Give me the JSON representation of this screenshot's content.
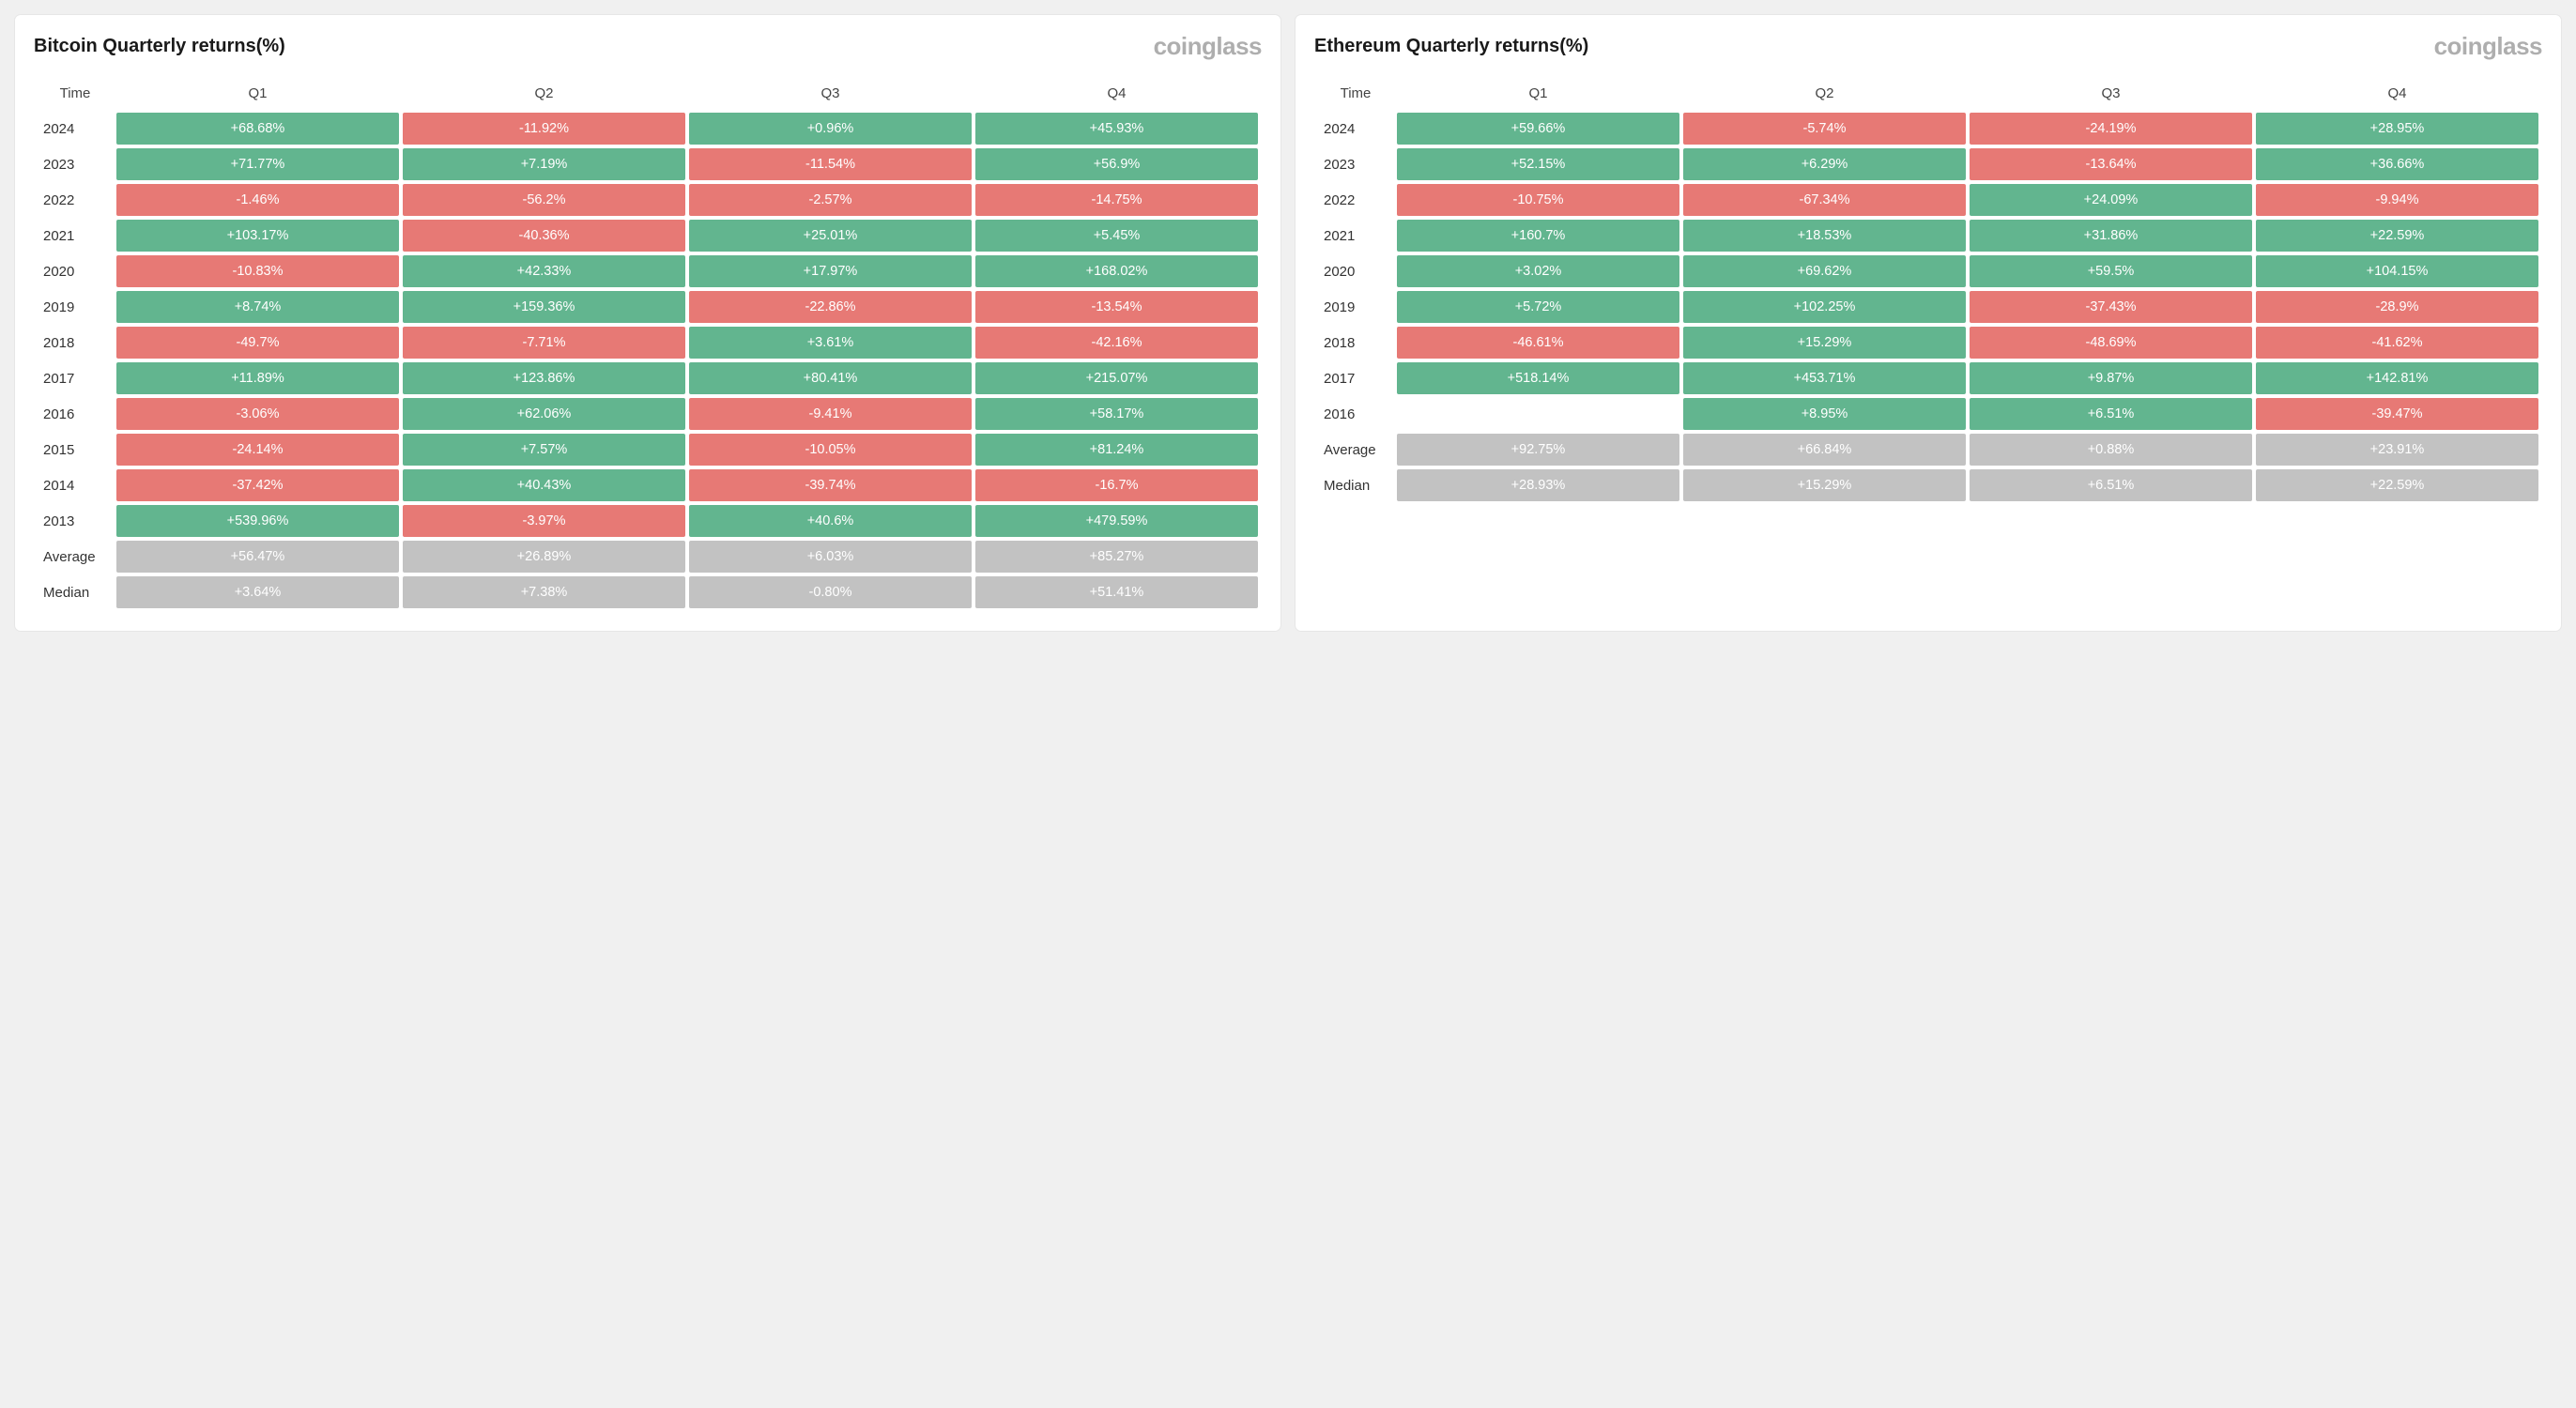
{
  "colors": {
    "positive": "#62b58f",
    "negative": "#e77975",
    "summary": "#c2c2c2",
    "page_bg": "#f0f0f0",
    "panel_bg": "#ffffff",
    "brand_text": "#aeaeae",
    "cell_text": "#ffffff"
  },
  "typography": {
    "title_fontsize": 20,
    "title_weight": 700,
    "brand_fontsize": 26,
    "brand_weight": 700,
    "header_fontsize": 15,
    "cell_fontsize": 14.5,
    "label_fontsize": 15
  },
  "layout": {
    "cell_spacing": 4,
    "panel_gap": 16,
    "label_col_width": 80
  },
  "panels": [
    {
      "title": "Bitcoin Quarterly returns(%)",
      "brand": "coinglass",
      "columns": [
        "Time",
        "Q1",
        "Q2",
        "Q3",
        "Q4"
      ],
      "rows": [
        {
          "label": "2024",
          "type": "data",
          "cells": [
            "+68.68%",
            "-11.92%",
            "+0.96%",
            "+45.93%"
          ]
        },
        {
          "label": "2023",
          "type": "data",
          "cells": [
            "+71.77%",
            "+7.19%",
            "-11.54%",
            "+56.9%"
          ]
        },
        {
          "label": "2022",
          "type": "data",
          "cells": [
            "-1.46%",
            "-56.2%",
            "-2.57%",
            "-14.75%"
          ]
        },
        {
          "label": "2021",
          "type": "data",
          "cells": [
            "+103.17%",
            "-40.36%",
            "+25.01%",
            "+5.45%"
          ]
        },
        {
          "label": "2020",
          "type": "data",
          "cells": [
            "-10.83%",
            "+42.33%",
            "+17.97%",
            "+168.02%"
          ]
        },
        {
          "label": "2019",
          "type": "data",
          "cells": [
            "+8.74%",
            "+159.36%",
            "-22.86%",
            "-13.54%"
          ]
        },
        {
          "label": "2018",
          "type": "data",
          "cells": [
            "-49.7%",
            "-7.71%",
            "+3.61%",
            "-42.16%"
          ]
        },
        {
          "label": "2017",
          "type": "data",
          "cells": [
            "+11.89%",
            "+123.86%",
            "+80.41%",
            "+215.07%"
          ]
        },
        {
          "label": "2016",
          "type": "data",
          "cells": [
            "-3.06%",
            "+62.06%",
            "-9.41%",
            "+58.17%"
          ]
        },
        {
          "label": "2015",
          "type": "data",
          "cells": [
            "-24.14%",
            "+7.57%",
            "-10.05%",
            "+81.24%"
          ]
        },
        {
          "label": "2014",
          "type": "data",
          "cells": [
            "-37.42%",
            "+40.43%",
            "-39.74%",
            "-16.7%"
          ]
        },
        {
          "label": "2013",
          "type": "data",
          "cells": [
            "+539.96%",
            "-3.97%",
            "+40.6%",
            "+479.59%"
          ]
        },
        {
          "label": "Average",
          "type": "summary",
          "cells": [
            "+56.47%",
            "+26.89%",
            "+6.03%",
            "+85.27%"
          ]
        },
        {
          "label": "Median",
          "type": "summary",
          "cells": [
            "+3.64%",
            "+7.38%",
            "-0.80%",
            "+51.41%"
          ]
        }
      ]
    },
    {
      "title": "Ethereum Quarterly returns(%)",
      "brand": "coinglass",
      "columns": [
        "Time",
        "Q1",
        "Q2",
        "Q3",
        "Q4"
      ],
      "rows": [
        {
          "label": "2024",
          "type": "data",
          "cells": [
            "+59.66%",
            "-5.74%",
            "-24.19%",
            "+28.95%"
          ]
        },
        {
          "label": "2023",
          "type": "data",
          "cells": [
            "+52.15%",
            "+6.29%",
            "-13.64%",
            "+36.66%"
          ]
        },
        {
          "label": "2022",
          "type": "data",
          "cells": [
            "-10.75%",
            "-67.34%",
            "+24.09%",
            "-9.94%"
          ]
        },
        {
          "label": "2021",
          "type": "data",
          "cells": [
            "+160.7%",
            "+18.53%",
            "+31.86%",
            "+22.59%"
          ]
        },
        {
          "label": "2020",
          "type": "data",
          "cells": [
            "+3.02%",
            "+69.62%",
            "+59.5%",
            "+104.15%"
          ]
        },
        {
          "label": "2019",
          "type": "data",
          "cells": [
            "+5.72%",
            "+102.25%",
            "-37.43%",
            "-28.9%"
          ]
        },
        {
          "label": "2018",
          "type": "data",
          "cells": [
            "-46.61%",
            "+15.29%",
            "-48.69%",
            "-41.62%"
          ]
        },
        {
          "label": "2017",
          "type": "data",
          "cells": [
            "+518.14%",
            "+453.71%",
            "+9.87%",
            "+142.81%"
          ]
        },
        {
          "label": "2016",
          "type": "data",
          "cells": [
            "",
            "+8.95%",
            "+6.51%",
            "-39.47%"
          ]
        },
        {
          "label": "Average",
          "type": "summary",
          "cells": [
            "+92.75%",
            "+66.84%",
            "+0.88%",
            "+23.91%"
          ]
        },
        {
          "label": "Median",
          "type": "summary",
          "cells": [
            "+28.93%",
            "+15.29%",
            "+6.51%",
            "+22.59%"
          ]
        }
      ]
    }
  ]
}
